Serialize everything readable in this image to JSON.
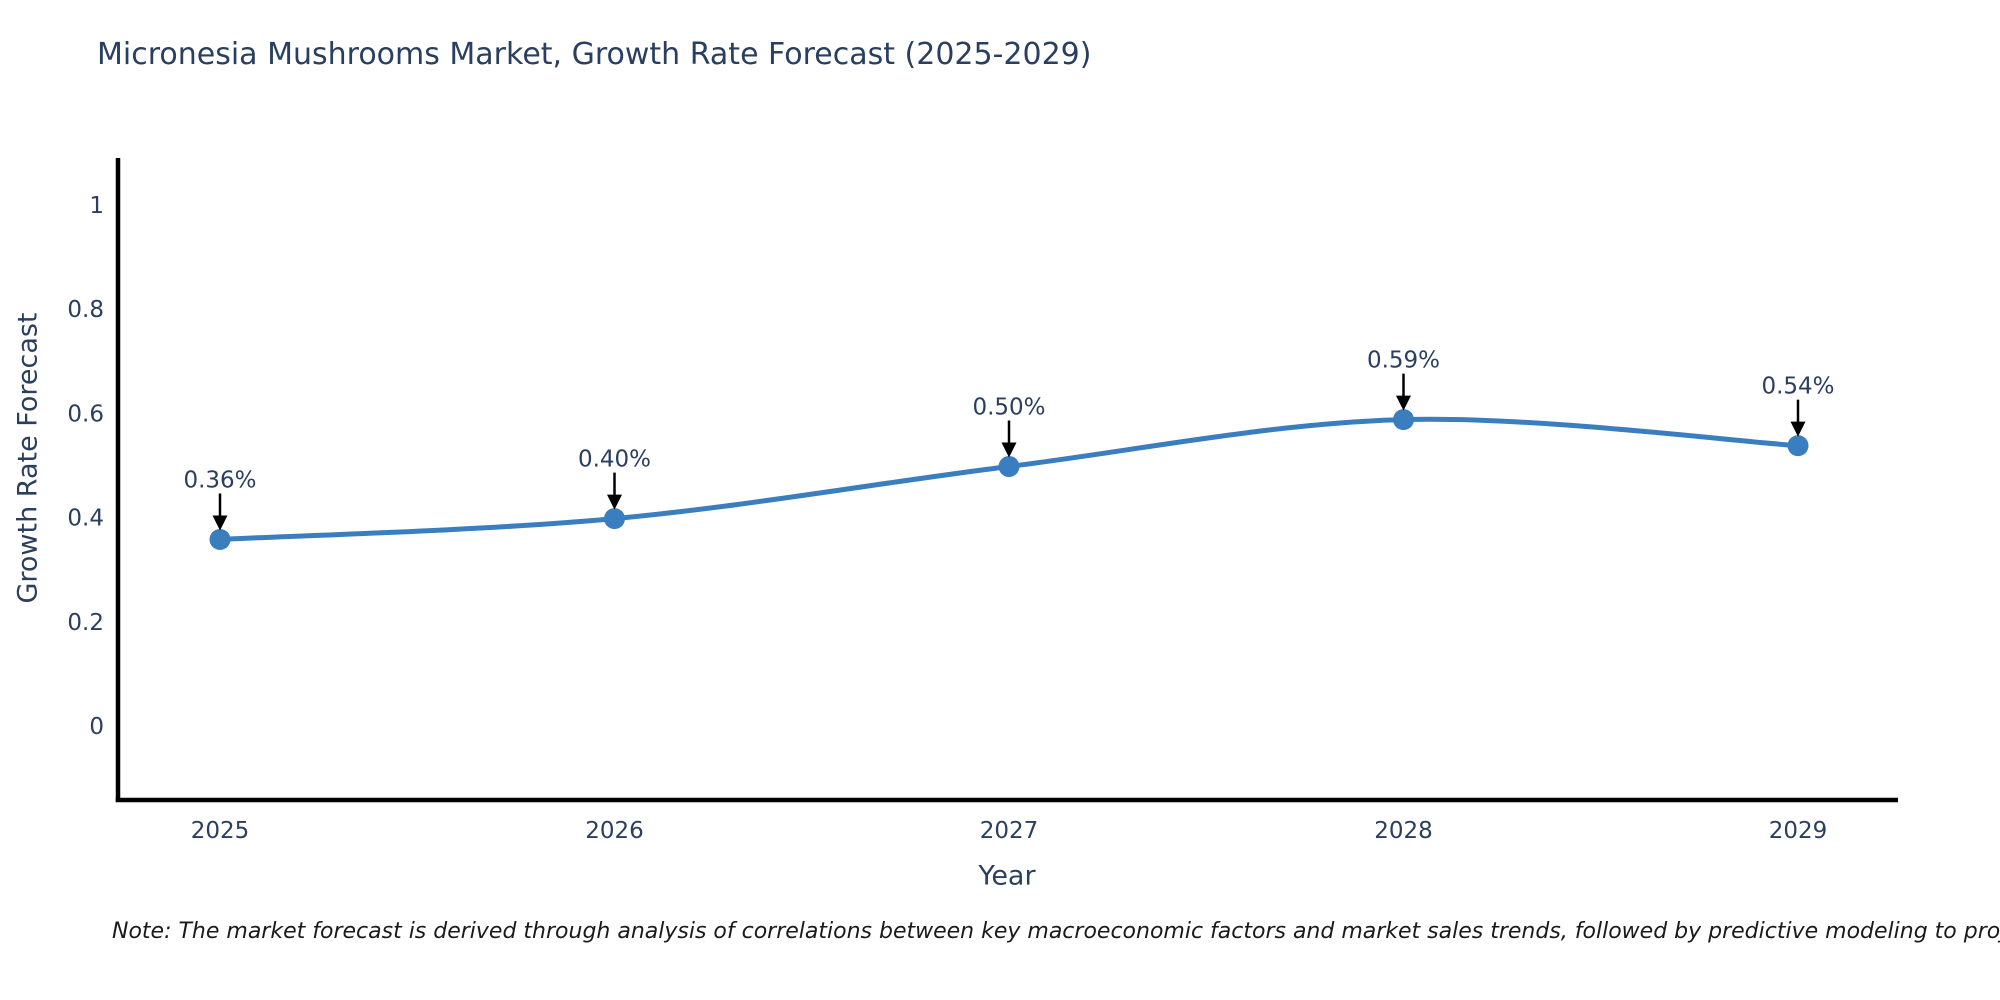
{
  "title": "Micronesia Mushrooms Market, Growth Rate Forecast (2025-2029)",
  "note": "Note: The market forecast is derived through analysis of correlations between key macroeconomic factors and market sales trends, followed by predictive modeling to project future sales",
  "colors": {
    "line": "#3a7ebf",
    "marker": "#3a7ebf",
    "title_text": "#2a3f5f",
    "axis_text": "#2a3f5f",
    "tick_text": "#2a3f5f",
    "annotation_text": "#2a3f5f",
    "annotation_arrow": "#000000",
    "axis_line": "#000000",
    "background": "#ffffff"
  },
  "chart_data": {
    "type": "line",
    "line_shape": "spline",
    "title": "Micronesia Mushrooms Market, Growth Rate Forecast (2025-2029)",
    "x": [
      2025,
      2026,
      2027,
      2028,
      2029
    ],
    "y": [
      0.36,
      0.4,
      0.5,
      0.59,
      0.54
    ],
    "point_labels": [
      "0.36%",
      "0.40%",
      "0.50%",
      "0.59%",
      "0.54%"
    ],
    "xtick_labels": [
      "2025",
      "2026",
      "2027",
      "2028",
      "2029"
    ],
    "yticks": [
      0,
      0.2,
      0.4,
      0.6,
      0.8,
      1
    ],
    "ytick_labels": [
      "0",
      "0.2",
      "0.4",
      "0.6",
      "0.8",
      "1"
    ],
    "xlabel": "Year",
    "ylabel": "Growth Rate Forecast",
    "ylim": [
      -0.14,
      1.09
    ],
    "grid": false,
    "legend": "none"
  }
}
